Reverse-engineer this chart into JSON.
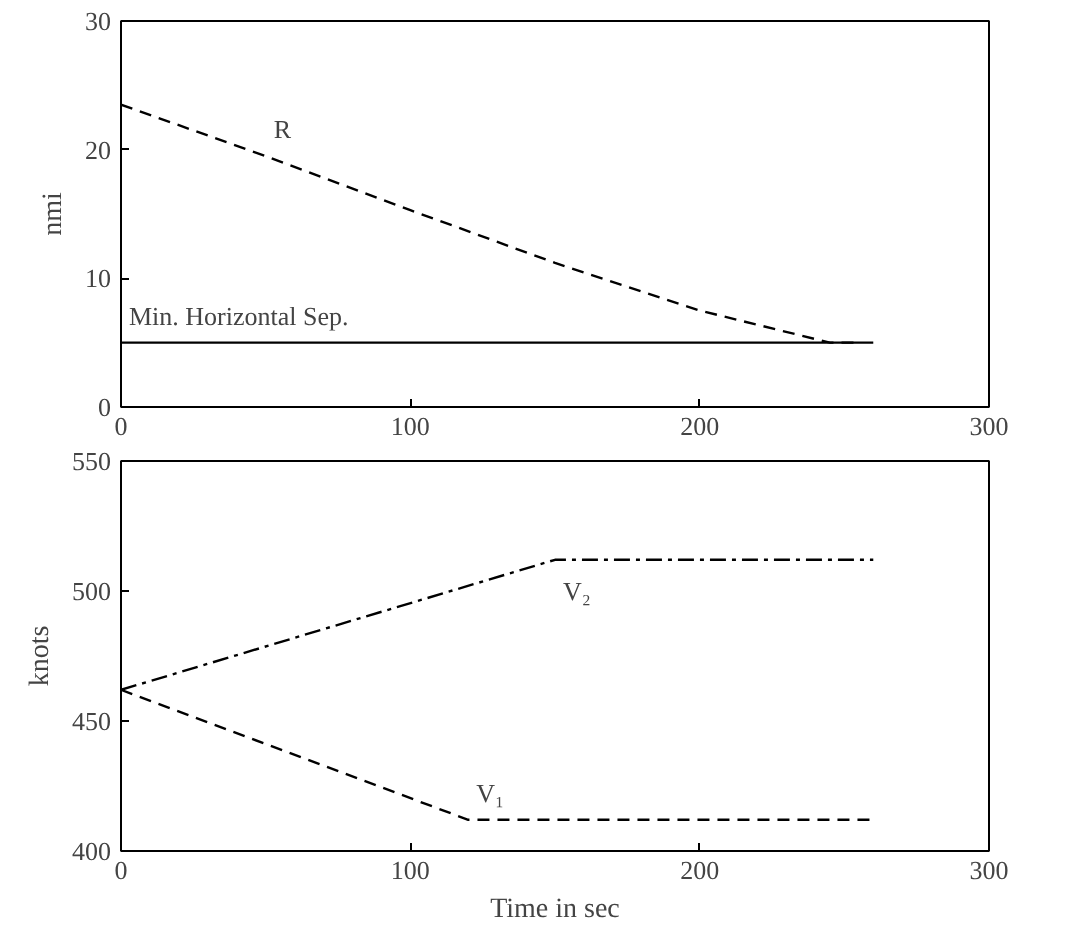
{
  "chart_data": [
    {
      "type": "line",
      "ylabel": "nmi",
      "xlim": [
        0,
        300
      ],
      "ylim": [
        0,
        30
      ],
      "xticks": [
        0,
        100,
        200,
        300
      ],
      "yticks": [
        0,
        10,
        20,
        30
      ],
      "grid": false,
      "series": [
        {
          "name": "R",
          "color": "#000000",
          "line_style": "dashed",
          "x": [
            0,
            50,
            100,
            150,
            200,
            245,
            255
          ],
          "values": [
            23.5,
            19.5,
            15.3,
            11.2,
            7.5,
            5,
            5
          ]
        },
        {
          "name": "Min. Horizontal Sep.",
          "color": "#000000",
          "line_style": "solid",
          "x": [
            0,
            260
          ],
          "values": [
            5,
            5
          ]
        }
      ]
    },
    {
      "type": "line",
      "xlabel": "Time in sec",
      "ylabel": "knots",
      "xlim": [
        0,
        300
      ],
      "ylim": [
        400,
        550
      ],
      "xticks": [
        0,
        100,
        200,
        300
      ],
      "yticks": [
        400,
        450,
        500,
        550
      ],
      "grid": false,
      "series": [
        {
          "name": "V₂",
          "color": "#000000",
          "line_style": "dashdot",
          "x": [
            0,
            150,
            260
          ],
          "values": [
            462,
            512,
            512
          ]
        },
        {
          "name": "V₁",
          "color": "#000000",
          "line_style": "dashed",
          "x": [
            0,
            120,
            260
          ],
          "values": [
            462,
            412,
            412
          ]
        }
      ]
    }
  ]
}
